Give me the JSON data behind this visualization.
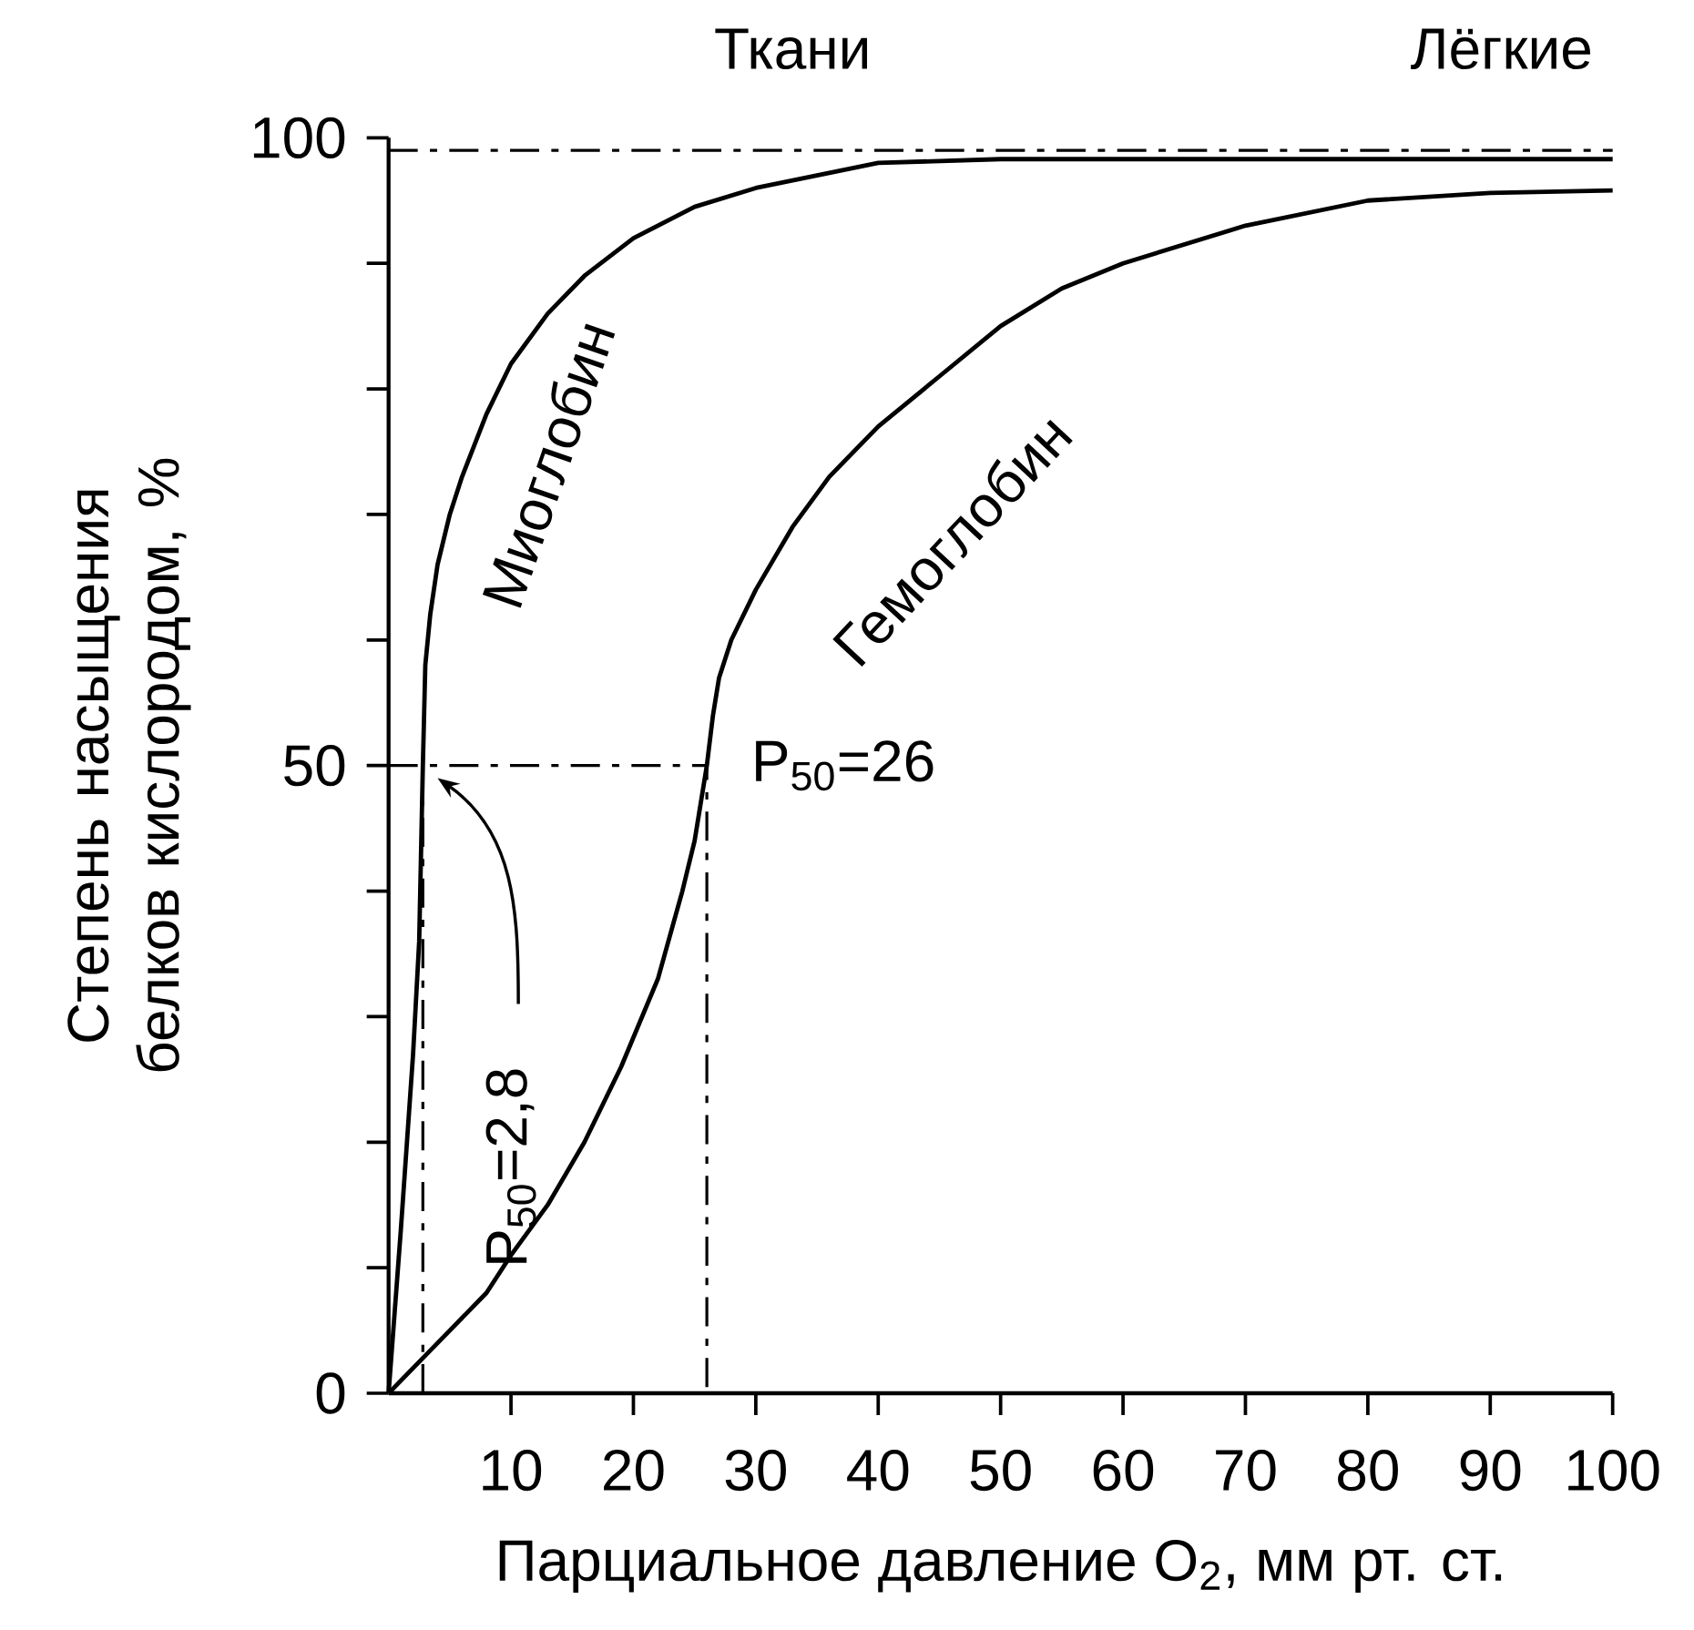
{
  "chart_data": {
    "type": "line",
    "xlabel": "Парциальное давление O$_{2}$, мм рт. ст.",
    "ylabel": "Степень насыщения белков кислородом, %",
    "xlim": [
      0,
      100
    ],
    "ylim": [
      0,
      100
    ],
    "xticks": [
      10,
      20,
      30,
      40,
      50,
      60,
      70,
      80,
      90,
      100
    ],
    "yticks": [
      0,
      {
        "value": 10,
        "label": null
      },
      {
        "value": 20,
        "label": null
      },
      {
        "value": 30,
        "label": null
      },
      {
        "value": 40,
        "label": null
      },
      50,
      {
        "value": 60,
        "label": null
      },
      {
        "value": 70,
        "label": null
      },
      {
        "value": 80,
        "label": null
      },
      {
        "value": 90,
        "label": null
      },
      100
    ],
    "grid": false,
    "marker": "none",
    "series": [
      {
        "name": "Миоглобин",
        "color": "#000000",
        "line_style": "solid",
        "x": [
          0,
          1,
          2,
          2.5,
          2.8,
          3,
          3.4,
          4,
          5,
          6,
          8,
          10,
          13,
          16,
          20,
          25,
          30,
          35,
          40,
          50,
          60,
          80,
          100
        ],
        "values": [
          0,
          13,
          27,
          36,
          50,
          58,
          62,
          66,
          70,
          73,
          78,
          82,
          86,
          89,
          92,
          94.5,
          96,
          97,
          98,
          98.3,
          98.3,
          98.3,
          98.3
        ]
      },
      {
        "name": "Гемоглобин",
        "color": "#000000",
        "line_style": "solid",
        "x": [
          0,
          2,
          5,
          8,
          10,
          13,
          16,
          19,
          22,
          24,
          25,
          26,
          26.5,
          27,
          28,
          30,
          33,
          36,
          40,
          45,
          50,
          55,
          60,
          70,
          80,
          90,
          100
        ],
        "values": [
          0,
          2,
          5,
          8,
          11,
          15,
          20,
          26,
          33,
          40,
          44,
          50,
          54,
          57,
          60,
          64,
          69,
          73,
          77,
          81,
          85,
          88,
          90,
          93,
          95,
          95.6,
          95.8
        ]
      },
      {
        "color": "#000000",
        "line_style": "dashed",
        "x": [
          0,
          26,
          26
        ],
        "values": [
          50,
          50,
          0
        ]
      },
      {
        "color": "#000000",
        "line_style": "dashed",
        "x": [
          2.8,
          2.8
        ],
        "values": [
          0,
          50
        ]
      }
    ],
    "ref_lines": [
      {
        "axis": "y",
        "value": 99,
        "line_style": "dashed",
        "color": "#000000"
      }
    ],
    "annotations": [
      "Ткани",
      "Лёгкие",
      "P$_{50}$=2,8",
      {
        "text": "P$_{50}$=26",
        "x": 26,
        "y": 50
      }
    ]
  }
}
